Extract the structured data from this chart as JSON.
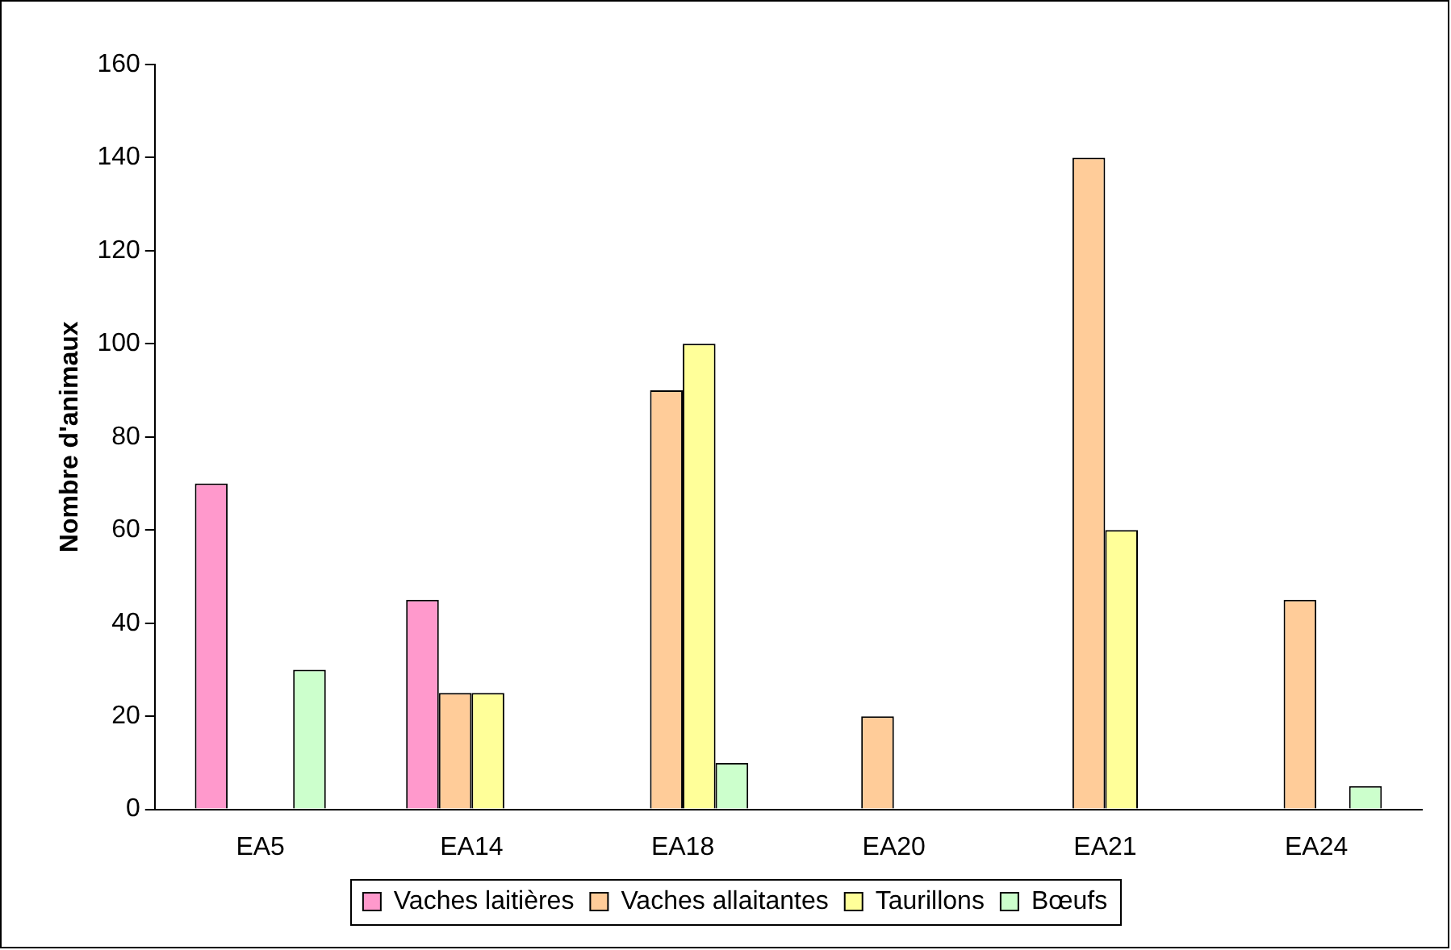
{
  "chart_data": {
    "type": "bar",
    "ylabel": "Nombre d'animaux",
    "categories": [
      "EA5",
      "EA14",
      "EA18",
      "EA20",
      "EA21",
      "EA24"
    ],
    "series": [
      {
        "name": "Vaches laitières",
        "color": "#ff99cc",
        "values": [
          70,
          45,
          null,
          null,
          null,
          null
        ]
      },
      {
        "name": "Vaches allaitantes",
        "color": "#ffcc99",
        "values": [
          null,
          25,
          90,
          20,
          140,
          45
        ]
      },
      {
        "name": "Taurillons",
        "color": "#ffff99",
        "values": [
          null,
          25,
          100,
          null,
          60,
          null
        ]
      },
      {
        "name": "Bœufs",
        "color": "#ccffcc",
        "values": [
          30,
          null,
          10,
          null,
          null,
          5
        ]
      }
    ],
    "ylim": [
      0,
      160
    ],
    "yticks": [
      0,
      20,
      40,
      60,
      80,
      100,
      120,
      140,
      160
    ],
    "grid": false,
    "legend": "bottom"
  }
}
